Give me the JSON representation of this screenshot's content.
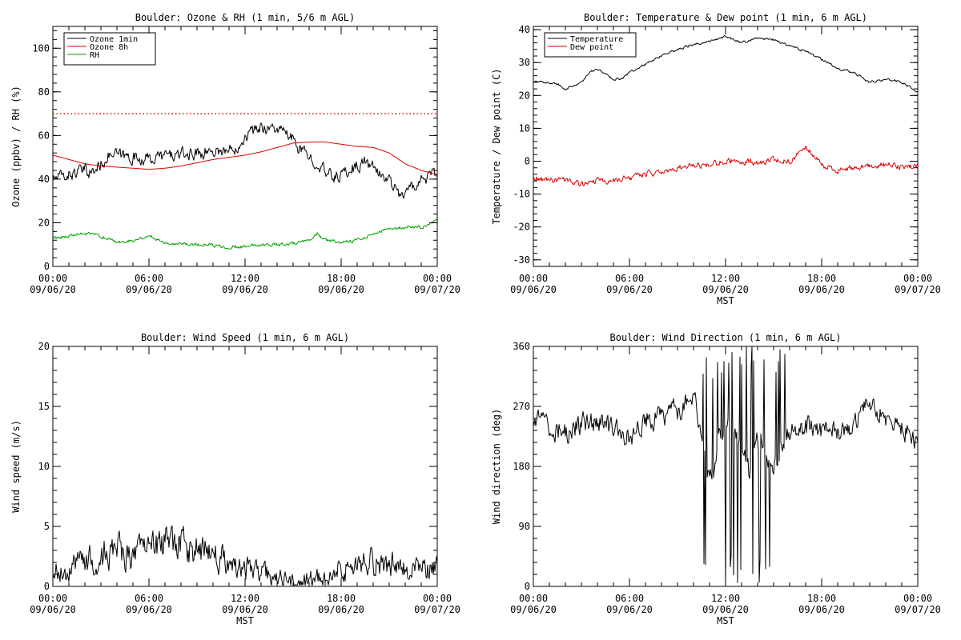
{
  "colors": {
    "axis": "#000000",
    "ozone_1min": "#000000",
    "ozone_8h": "#dd0000",
    "rh": "#00a000",
    "temperature": "#000000",
    "dew_point": "#dd0000",
    "wind": "#000000"
  },
  "chart_data": [
    {
      "id": "ozone-rh",
      "type": "line",
      "title": "Boulder: Ozone & RH (1 min, 5/6 m AGL)",
      "xlabel": "",
      "ylabel": "Ozone (ppbv) / RH (%)",
      "xlim": [
        0,
        24
      ],
      "ylim": [
        0,
        110
      ],
      "yticks": [
        0,
        20,
        40,
        60,
        80,
        100
      ],
      "xticks": [
        0,
        6,
        12,
        18,
        24
      ],
      "xtick_labels": [
        [
          "00:00",
          "09/06/20"
        ],
        [
          "06:00",
          "09/06/20"
        ],
        [
          "12:00",
          "09/06/20"
        ],
        [
          "18:00",
          "09/06/20"
        ],
        [
          "00:00",
          "09/07/20"
        ]
      ],
      "legend": "top-left",
      "ref_line": {
        "y": 70,
        "color": "#dd0000",
        "style": "dotted"
      },
      "series": [
        {
          "name": "Ozone 1min",
          "color": "#000000",
          "noise": 2.5,
          "x": [
            0,
            1,
            2,
            2.5,
            3,
            3.5,
            4,
            5,
            6,
            7,
            8,
            9,
            10,
            11,
            11.5,
            12,
            12.5,
            13,
            14,
            14.5,
            15,
            15.5,
            16,
            16.5,
            17,
            17.5,
            18,
            19,
            19.5,
            20,
            20.5,
            21,
            21.5,
            22,
            22.5,
            23,
            24
          ],
          "y": [
            40,
            42,
            44,
            43,
            47,
            51,
            51,
            50,
            49,
            51,
            51,
            52,
            53,
            53,
            55,
            60,
            62,
            64,
            63,
            61,
            58,
            53,
            50,
            48,
            43,
            41,
            42,
            46,
            48,
            45,
            42,
            40,
            34,
            33,
            37,
            40,
            42
          ]
        },
        {
          "name": "Ozone 8h",
          "color": "#dd0000",
          "noise": 0,
          "x": [
            0,
            1,
            2,
            3,
            4,
            5,
            6,
            7,
            8,
            9,
            10,
            11,
            12,
            13,
            14,
            15,
            16,
            17,
            18,
            19,
            20,
            21,
            22,
            23,
            24
          ],
          "y": [
            51,
            49,
            47,
            46,
            45.5,
            45,
            44.5,
            45,
            46,
            47.5,
            49,
            50,
            51,
            52.5,
            54.5,
            56.5,
            57,
            57,
            56,
            55,
            54.5,
            52,
            47,
            44,
            42
          ]
        },
        {
          "name": "RH",
          "color": "#00a000",
          "noise": 0.7,
          "x": [
            0,
            1,
            2,
            3,
            4,
            5,
            6,
            7,
            8,
            9,
            10,
            11,
            12,
            13,
            14,
            15,
            16,
            16.5,
            17,
            18,
            19,
            20,
            21,
            22,
            23,
            24
          ],
          "y": [
            13,
            14,
            15,
            14,
            11,
            12,
            14,
            11,
            10.5,
            10,
            9.5,
            9,
            9,
            10,
            10,
            10.5,
            11.5,
            15,
            12,
            11,
            12,
            15,
            17,
            18,
            18,
            21
          ]
        }
      ]
    },
    {
      "id": "temperature-dewpoint",
      "type": "line",
      "title": "Boulder: Temperature & Dew point (1 min, 6 m AGL)",
      "xlabel": "MST",
      "ylabel": "Temperature / Dew point (C)",
      "xlim": [
        0,
        24
      ],
      "ylim": [
        -32,
        41
      ],
      "yticks": [
        -30,
        -20,
        -10,
        0,
        10,
        20,
        30,
        40
      ],
      "xticks": [
        0,
        6,
        12,
        18,
        24
      ],
      "xtick_labels": [
        [
          "00:00",
          "09/06/20"
        ],
        [
          "06:00",
          "09/06/20"
        ],
        [
          "12:00",
          "09/06/20"
        ],
        [
          "18:00",
          "09/06/20"
        ],
        [
          "00:00",
          "09/07/20"
        ]
      ],
      "legend": "top-left",
      "series": [
        {
          "name": "Temperature",
          "color": "#000000",
          "noise": 0.3,
          "x": [
            0,
            1,
            1.5,
            2,
            2.5,
            3,
            3.5,
            4,
            4.5,
            5,
            5.5,
            6,
            7,
            8,
            9,
            10,
            11,
            12,
            12.5,
            13,
            14,
            15,
            16,
            17,
            18,
            19,
            20,
            21,
            22,
            23,
            24
          ],
          "y": [
            24,
            24,
            23.5,
            22,
            23,
            24,
            27,
            28,
            26.5,
            25,
            25,
            27,
            29.5,
            32,
            34,
            35.5,
            36.5,
            38,
            37,
            36,
            37.5,
            37,
            35,
            33.5,
            31,
            28,
            27,
            24,
            25,
            24,
            21
          ]
        },
        {
          "name": "Dew point",
          "color": "#dd0000",
          "noise": 0.8,
          "x": [
            0,
            1,
            2,
            3,
            4,
            5,
            6,
            7,
            8,
            9,
            10,
            11,
            12,
            13,
            14,
            15,
            16,
            17,
            17.5,
            18,
            19,
            20,
            21,
            22,
            23,
            24
          ],
          "y": [
            -5,
            -6,
            -6,
            -7,
            -6,
            -6,
            -5,
            -4,
            -3,
            -2,
            -1.5,
            -1,
            0,
            0,
            -0.5,
            0.5,
            0,
            4,
            2,
            -1,
            -3,
            -2,
            -1.5,
            -1,
            -2,
            -1.5
          ]
        }
      ]
    },
    {
      "id": "wind-speed",
      "type": "line",
      "title": "Boulder: Wind Speed (1 min, 6 m AGL)",
      "xlabel": "MST",
      "ylabel": "Wind speed (m/s)",
      "xlim": [
        0,
        24
      ],
      "ylim": [
        0,
        20
      ],
      "yticks": [
        0,
        5,
        10,
        15,
        20
      ],
      "xticks": [
        0,
        6,
        12,
        18,
        24
      ],
      "xtick_labels": [
        [
          "00:00",
          "09/06/20"
        ],
        [
          "06:00",
          "09/06/20"
        ],
        [
          "12:00",
          "09/06/20"
        ],
        [
          "18:00",
          "09/06/20"
        ],
        [
          "00:00",
          "09/07/20"
        ]
      ],
      "series": [
        {
          "name": "",
          "color": "#000000",
          "noise": 0.9,
          "x": [
            0,
            1,
            2,
            3,
            4,
            5,
            6,
            7,
            8,
            9,
            10,
            11,
            12,
            13,
            14,
            15,
            16,
            17,
            18,
            19,
            20,
            21,
            22,
            23,
            24
          ],
          "y": [
            1,
            1.5,
            2,
            2.8,
            3,
            2.5,
            3,
            3.5,
            3.5,
            3,
            2.5,
            2,
            1.5,
            1,
            0.8,
            0.3,
            0.5,
            1,
            1.5,
            1.8,
            2,
            2,
            1.5,
            1.5,
            1.5
          ]
        }
      ]
    },
    {
      "id": "wind-direction",
      "type": "line",
      "title": "Boulder: Wind Direction (1 min, 6 m AGL)",
      "xlabel": "MST",
      "ylabel": "Wind direction (deg)",
      "xlim": [
        0,
        24
      ],
      "ylim": [
        0,
        360
      ],
      "yticks": [
        0,
        90,
        180,
        270,
        360
      ],
      "xticks": [
        0,
        6,
        12,
        18,
        24
      ],
      "xtick_labels": [
        [
          "00:00",
          "09/06/20"
        ],
        [
          "06:00",
          "09/06/20"
        ],
        [
          "12:00",
          "09/06/20"
        ],
        [
          "18:00",
          "09/06/20"
        ],
        [
          "00:00",
          "09/07/20"
        ]
      ],
      "series": [
        {
          "name": "",
          "color": "#000000",
          "noise": 14,
          "x": [
            0,
            1,
            2,
            3,
            4,
            5,
            6,
            7,
            8,
            9,
            10,
            10.5,
            11,
            11.5,
            12,
            12.5,
            13,
            13.5,
            14,
            14.5,
            15,
            15.5,
            16,
            17,
            18,
            19,
            20,
            21,
            22,
            23,
            24
          ],
          "y": [
            250,
            240,
            230,
            245,
            245,
            235,
            225,
            250,
            255,
            265,
            280,
            240,
            150,
            210,
            240,
            230,
            200,
            170,
            220,
            200,
            180,
            210,
            230,
            240,
            235,
            235,
            240,
            275,
            255,
            235,
            220
          ]
        }
      ]
    }
  ]
}
